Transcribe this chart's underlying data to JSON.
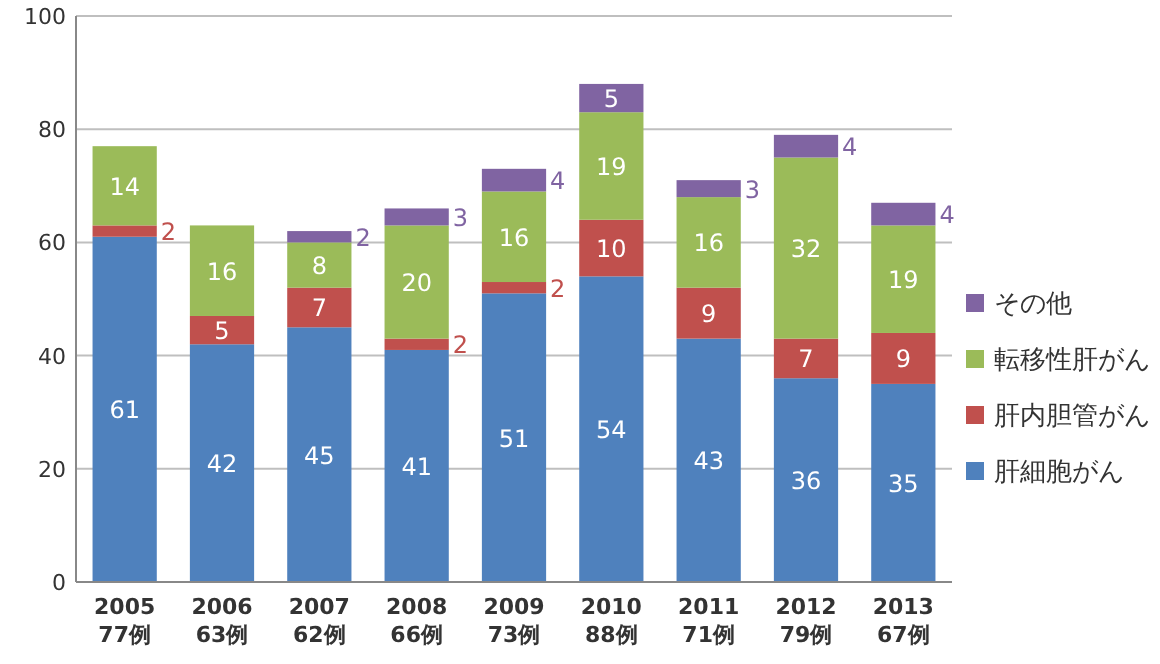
{
  "chart_data": {
    "type": "bar",
    "stacked": true,
    "categories": [
      "2005\n77例",
      "2006\n63例",
      "2007\n62例",
      "2008\n66例",
      "2009\n73例",
      "2010\n88例",
      "2011\n71例",
      "2012\n79例",
      "2013\n67例"
    ],
    "series": [
      {
        "name": "肝細胞がん",
        "color": "#4f81bd",
        "values": [
          61,
          42,
          45,
          41,
          51,
          54,
          43,
          36,
          35
        ]
      },
      {
        "name": "肝内胆管がん",
        "color": "#c0504d",
        "values": [
          2,
          5,
          7,
          2,
          2,
          10,
          9,
          7,
          9
        ]
      },
      {
        "name": "転移性肝がん",
        "color": "#9bbb59",
        "values": [
          14,
          16,
          8,
          20,
          16,
          19,
          16,
          32,
          19
        ]
      },
      {
        "name": "その他",
        "color": "#8064a2",
        "values": [
          null,
          null,
          2,
          3,
          4,
          5,
          3,
          4,
          4
        ]
      }
    ],
    "ylim": [
      0,
      100
    ],
    "yticks": [
      0,
      20,
      40,
      60,
      80,
      100
    ],
    "grid": "y",
    "legend": "right",
    "data_labels": true
  }
}
